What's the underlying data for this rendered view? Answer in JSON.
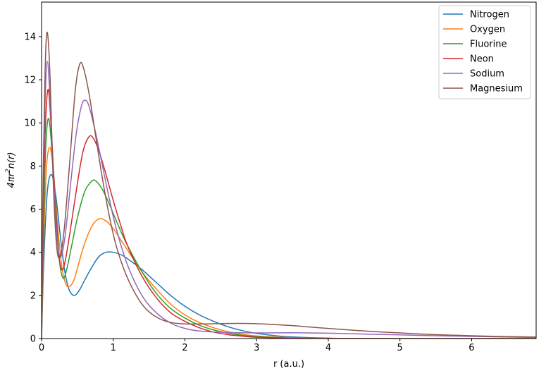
{
  "chart_data": {
    "type": "line",
    "title": "",
    "xlabel": "r (a.u.)",
    "ylabel_parts": {
      "base": "4πr",
      "sup": "2",
      "tail": "n(r)"
    },
    "xlim": [
      0,
      6.9
    ],
    "ylim": [
      0,
      15.6
    ],
    "xticks": [
      0,
      1,
      2,
      3,
      4,
      5,
      6
    ],
    "yticks": [
      0,
      2,
      4,
      6,
      8,
      10,
      12,
      14
    ],
    "grid": false,
    "legend_position": "top-right",
    "series": [
      {
        "name": "Nitrogen",
        "color": "#1f77b4",
        "points": [
          [
            0,
            0
          ],
          [
            0.03,
            3.5
          ],
          [
            0.08,
            6.8
          ],
          [
            0.14,
            7.6
          ],
          [
            0.2,
            6.6
          ],
          [
            0.26,
            4.8
          ],
          [
            0.32,
            3.2
          ],
          [
            0.38,
            2.3
          ],
          [
            0.45,
            2.0
          ],
          [
            0.52,
            2.2
          ],
          [
            0.6,
            2.7
          ],
          [
            0.7,
            3.3
          ],
          [
            0.8,
            3.8
          ],
          [
            0.9,
            4.0
          ],
          [
            1.0,
            4.0
          ],
          [
            1.1,
            3.9
          ],
          [
            1.2,
            3.7
          ],
          [
            1.4,
            3.2
          ],
          [
            1.6,
            2.6
          ],
          [
            1.8,
            2.0
          ],
          [
            2.0,
            1.5
          ],
          [
            2.2,
            1.1
          ],
          [
            2.4,
            0.8
          ],
          [
            2.6,
            0.55
          ],
          [
            2.8,
            0.37
          ],
          [
            3.0,
            0.24
          ],
          [
            3.3,
            0.12
          ],
          [
            3.6,
            0.06
          ],
          [
            4.0,
            0.02
          ],
          [
            4.5,
            0.005
          ],
          [
            6.9,
            0
          ]
        ]
      },
      {
        "name": "Oxygen",
        "color": "#ff7f0e",
        "points": [
          [
            0,
            0
          ],
          [
            0.03,
            4.5
          ],
          [
            0.07,
            8.0
          ],
          [
            0.12,
            8.85
          ],
          [
            0.17,
            7.6
          ],
          [
            0.22,
            5.4
          ],
          [
            0.28,
            3.4
          ],
          [
            0.33,
            2.6
          ],
          [
            0.38,
            2.4
          ],
          [
            0.45,
            2.7
          ],
          [
            0.52,
            3.5
          ],
          [
            0.6,
            4.4
          ],
          [
            0.7,
            5.2
          ],
          [
            0.8,
            5.55
          ],
          [
            0.9,
            5.45
          ],
          [
            1.0,
            5.1
          ],
          [
            1.1,
            4.6
          ],
          [
            1.2,
            4.1
          ],
          [
            1.4,
            3.1
          ],
          [
            1.6,
            2.3
          ],
          [
            1.8,
            1.6
          ],
          [
            2.0,
            1.1
          ],
          [
            2.2,
            0.75
          ],
          [
            2.4,
            0.5
          ],
          [
            2.6,
            0.32
          ],
          [
            2.8,
            0.2
          ],
          [
            3.0,
            0.12
          ],
          [
            3.4,
            0.05
          ],
          [
            4.0,
            0.01
          ],
          [
            6.9,
            0
          ]
        ]
      },
      {
        "name": "Fluorine",
        "color": "#2ca02c",
        "points": [
          [
            0,
            0
          ],
          [
            0.03,
            5.5
          ],
          [
            0.06,
            9.0
          ],
          [
            0.1,
            10.2
          ],
          [
            0.15,
            8.5
          ],
          [
            0.2,
            6.0
          ],
          [
            0.25,
            3.6
          ],
          [
            0.3,
            2.8
          ],
          [
            0.35,
            3.2
          ],
          [
            0.42,
            4.3
          ],
          [
            0.5,
            5.6
          ],
          [
            0.6,
            6.8
          ],
          [
            0.7,
            7.3
          ],
          [
            0.76,
            7.3
          ],
          [
            0.85,
            6.9
          ],
          [
            0.95,
            6.2
          ],
          [
            1.05,
            5.4
          ],
          [
            1.2,
            4.3
          ],
          [
            1.4,
            3.1
          ],
          [
            1.6,
            2.1
          ],
          [
            1.8,
            1.4
          ],
          [
            2.0,
            0.95
          ],
          [
            2.2,
            0.62
          ],
          [
            2.4,
            0.4
          ],
          [
            2.6,
            0.25
          ],
          [
            2.8,
            0.15
          ],
          [
            3.0,
            0.09
          ],
          [
            3.4,
            0.03
          ],
          [
            4.0,
            0.005
          ],
          [
            6.9,
            0
          ]
        ]
      },
      {
        "name": "Neon",
        "color": "#d62728",
        "points": [
          [
            0,
            0
          ],
          [
            0.02,
            5.0
          ],
          [
            0.05,
            9.5
          ],
          [
            0.09,
            11.55
          ],
          [
            0.13,
            10.0
          ],
          [
            0.18,
            7.0
          ],
          [
            0.23,
            4.2
          ],
          [
            0.28,
            3.2
          ],
          [
            0.33,
            3.6
          ],
          [
            0.4,
            5.0
          ],
          [
            0.5,
            7.2
          ],
          [
            0.58,
            8.7
          ],
          [
            0.66,
            9.35
          ],
          [
            0.72,
            9.3
          ],
          [
            0.8,
            8.7
          ],
          [
            0.9,
            7.6
          ],
          [
            1.0,
            6.4
          ],
          [
            1.1,
            5.3
          ],
          [
            1.2,
            4.3
          ],
          [
            1.4,
            2.9
          ],
          [
            1.6,
            1.9
          ],
          [
            1.8,
            1.2
          ],
          [
            2.0,
            0.8
          ],
          [
            2.2,
            0.5
          ],
          [
            2.4,
            0.3
          ],
          [
            2.6,
            0.18
          ],
          [
            2.8,
            0.11
          ],
          [
            3.0,
            0.06
          ],
          [
            3.5,
            0.02
          ],
          [
            4.0,
            0.005
          ],
          [
            6.9,
            0
          ]
        ]
      },
      {
        "name": "Sodium",
        "color": "#9467bd",
        "points": [
          [
            0,
            0
          ],
          [
            0.02,
            6.0
          ],
          [
            0.05,
            11.0
          ],
          [
            0.08,
            12.85
          ],
          [
            0.12,
            11.0
          ],
          [
            0.17,
            7.3
          ],
          [
            0.22,
            4.5
          ],
          [
            0.27,
            3.8
          ],
          [
            0.33,
            4.8
          ],
          [
            0.4,
            7.0
          ],
          [
            0.48,
            9.4
          ],
          [
            0.55,
            10.7
          ],
          [
            0.6,
            11.05
          ],
          [
            0.66,
            10.8
          ],
          [
            0.75,
            9.6
          ],
          [
            0.85,
            8.0
          ],
          [
            0.95,
            6.4
          ],
          [
            1.05,
            5.0
          ],
          [
            1.2,
            3.4
          ],
          [
            1.4,
            2.0
          ],
          [
            1.6,
            1.2
          ],
          [
            1.8,
            0.72
          ],
          [
            2.0,
            0.47
          ],
          [
            2.2,
            0.35
          ],
          [
            2.5,
            0.29
          ],
          [
            3.0,
            0.26
          ],
          [
            3.5,
            0.27
          ],
          [
            4.0,
            0.25
          ],
          [
            4.5,
            0.21
          ],
          [
            5.0,
            0.17
          ],
          [
            5.5,
            0.13
          ],
          [
            6.0,
            0.1
          ],
          [
            6.5,
            0.07
          ],
          [
            6.9,
            0.05
          ]
        ]
      },
      {
        "name": "Magnesium",
        "color": "#8c564b",
        "points": [
          [
            0,
            0
          ],
          [
            0.02,
            7.0
          ],
          [
            0.05,
            12.5
          ],
          [
            0.08,
            14.2
          ],
          [
            0.12,
            12.0
          ],
          [
            0.16,
            7.5
          ],
          [
            0.21,
            4.3
          ],
          [
            0.26,
            3.8
          ],
          [
            0.32,
            5.2
          ],
          [
            0.4,
            8.5
          ],
          [
            0.47,
            11.5
          ],
          [
            0.53,
            12.7
          ],
          [
            0.58,
            12.6
          ],
          [
            0.66,
            11.4
          ],
          [
            0.75,
            9.5
          ],
          [
            0.85,
            7.4
          ],
          [
            0.95,
            5.6
          ],
          [
            1.05,
            4.2
          ],
          [
            1.2,
            2.8
          ],
          [
            1.4,
            1.6
          ],
          [
            1.6,
            1.0
          ],
          [
            1.8,
            0.75
          ],
          [
            2.0,
            0.68
          ],
          [
            2.3,
            0.68
          ],
          [
            2.6,
            0.7
          ],
          [
            2.9,
            0.7
          ],
          [
            3.2,
            0.66
          ],
          [
            3.5,
            0.6
          ],
          [
            3.8,
            0.52
          ],
          [
            4.2,
            0.42
          ],
          [
            4.6,
            0.33
          ],
          [
            5.0,
            0.26
          ],
          [
            5.5,
            0.18
          ],
          [
            6.0,
            0.13
          ],
          [
            6.5,
            0.09
          ],
          [
            6.9,
            0.07
          ]
        ]
      }
    ]
  }
}
